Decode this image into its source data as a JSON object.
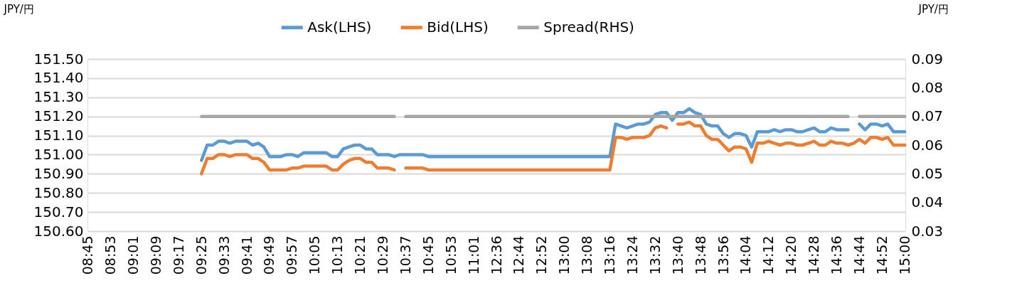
{
  "chart_data": {
    "type": "line",
    "categories": [
      "08:45",
      null,
      null,
      null,
      "08:53",
      null,
      null,
      null,
      "09:01",
      null,
      null,
      null,
      "09:09",
      null,
      null,
      null,
      "09:17",
      null,
      null,
      null,
      "09:25",
      null,
      null,
      null,
      "09:33",
      null,
      null,
      null,
      "09:41",
      null,
      null,
      null,
      "09:49",
      null,
      null,
      null,
      "09:57",
      null,
      null,
      null,
      "10:05",
      null,
      null,
      null,
      "10:13",
      null,
      null,
      null,
      "10:21",
      null,
      null,
      null,
      "10:29",
      null,
      null,
      null,
      "10:37",
      null,
      null,
      null,
      "10:45",
      null,
      null,
      null,
      "10:53",
      null,
      null,
      null,
      "11:01",
      null,
      null,
      null,
      "12:36",
      null,
      null,
      null,
      "12:44",
      null,
      null,
      null,
      "12:52",
      null,
      null,
      null,
      "13:00",
      null,
      null,
      null,
      "13:08",
      null,
      null,
      null,
      "13:16",
      null,
      null,
      null,
      "13:24",
      null,
      null,
      null,
      "13:32",
      null,
      null,
      null,
      "13:40",
      null,
      null,
      null,
      "13:48",
      null,
      null,
      null,
      "13:56",
      null,
      null,
      null,
      "14:04",
      null,
      null,
      null,
      "14:12",
      null,
      null,
      null,
      "14:20",
      null,
      null,
      null,
      "14:28",
      null,
      null,
      null,
      "14:36",
      null,
      null,
      null,
      "14:44",
      null,
      null,
      null,
      "14:52",
      null,
      null,
      null,
      "15:00"
    ],
    "series": [
      {
        "name": "Ask(LHS)",
        "color": "#5b9bd5",
        "values": [
          null,
          null,
          null,
          null,
          null,
          null,
          null,
          null,
          null,
          null,
          null,
          null,
          null,
          null,
          null,
          null,
          null,
          null,
          null,
          null,
          150.97,
          151.05,
          151.05,
          151.07,
          151.07,
          151.06,
          151.07,
          151.07,
          151.07,
          151.05,
          151.06,
          151.04,
          150.99,
          150.99,
          150.99,
          151.0,
          151.0,
          150.99,
          151.01,
          151.01,
          151.01,
          151.01,
          151.01,
          150.99,
          150.99,
          151.03,
          151.04,
          151.05,
          151.05,
          151.03,
          151.03,
          151.0,
          151.0,
          151.0,
          150.99,
          151.0,
          151.0,
          151.0,
          151.0,
          151.0,
          150.99,
          150.99,
          150.99,
          150.99,
          150.99,
          150.99,
          150.99,
          150.99,
          150.99,
          150.99,
          150.99,
          150.99,
          150.99,
          150.99,
          150.99,
          150.99,
          150.99,
          150.99,
          150.99,
          150.99,
          150.99,
          150.99,
          150.99,
          150.99,
          150.99,
          150.99,
          150.99,
          150.99,
          150.99,
          150.99,
          150.99,
          150.99,
          150.99,
          151.16,
          151.15,
          151.14,
          151.15,
          151.16,
          151.16,
          151.17,
          151.21,
          151.22,
          151.22,
          151.18,
          151.22,
          151.22,
          151.24,
          151.22,
          151.21,
          151.16,
          151.15,
          151.15,
          151.11,
          151.09,
          151.11,
          151.11,
          151.1,
          151.04,
          151.12,
          151.12,
          151.12,
          151.13,
          151.12,
          151.13,
          151.13,
          151.12,
          151.12,
          151.13,
          151.14,
          151.12,
          151.12,
          151.14,
          151.13,
          151.13,
          151.13,
          null,
          151.16,
          151.13,
          151.16,
          151.16,
          151.15,
          151.16,
          151.12,
          151.12,
          151.12
        ]
      },
      {
        "name": "Bid(LHS)",
        "color": "#ed7d31",
        "values": [
          null,
          null,
          null,
          null,
          null,
          null,
          null,
          null,
          null,
          null,
          null,
          null,
          null,
          null,
          null,
          null,
          null,
          null,
          null,
          null,
          150.9,
          150.98,
          150.98,
          151.0,
          151.0,
          150.99,
          151.0,
          151.0,
          151.0,
          150.98,
          150.98,
          150.96,
          150.92,
          150.92,
          150.92,
          150.92,
          150.93,
          150.93,
          150.94,
          150.94,
          150.94,
          150.94,
          150.94,
          150.92,
          150.92,
          150.95,
          150.97,
          150.98,
          150.98,
          150.96,
          150.96,
          150.93,
          150.93,
          150.93,
          150.92,
          null,
          150.93,
          150.93,
          150.93,
          150.93,
          150.92,
          150.92,
          150.92,
          150.92,
          150.92,
          150.92,
          150.92,
          150.92,
          150.92,
          150.92,
          150.92,
          150.92,
          150.92,
          150.92,
          150.92,
          150.92,
          150.92,
          150.92,
          150.92,
          150.92,
          150.92,
          150.92,
          150.92,
          150.92,
          150.92,
          150.92,
          150.92,
          150.92,
          150.92,
          150.92,
          150.92,
          150.92,
          150.92,
          151.09,
          151.09,
          151.08,
          151.09,
          151.09,
          151.09,
          151.1,
          151.14,
          151.15,
          151.14,
          null,
          151.16,
          151.16,
          151.17,
          151.15,
          151.15,
          151.1,
          151.08,
          151.08,
          151.05,
          151.02,
          151.04,
          151.04,
          151.03,
          150.96,
          151.06,
          151.06,
          151.07,
          151.06,
          151.05,
          151.06,
          151.06,
          151.05,
          151.05,
          151.06,
          151.07,
          151.05,
          151.05,
          151.07,
          151.06,
          151.06,
          151.05,
          151.06,
          151.08,
          151.06,
          151.09,
          151.09,
          151.08,
          151.09,
          151.05,
          151.05,
          151.05
        ]
      },
      {
        "name": "Spread(RHS)",
        "color": "#a5a5a5",
        "axis": "y2",
        "values": [
          null,
          null,
          null,
          null,
          null,
          null,
          null,
          null,
          null,
          null,
          null,
          null,
          null,
          null,
          null,
          null,
          null,
          null,
          null,
          null,
          0.07,
          0.07,
          0.07,
          0.07,
          0.07,
          0.07,
          0.07,
          0.07,
          0.07,
          0.07,
          0.07,
          0.07,
          0.07,
          0.07,
          0.07,
          0.07,
          0.07,
          0.07,
          0.07,
          0.07,
          0.07,
          0.07,
          0.07,
          0.07,
          0.07,
          0.07,
          0.07,
          0.07,
          0.07,
          0.07,
          0.07,
          0.07,
          0.07,
          0.07,
          0.07,
          null,
          0.07,
          0.07,
          0.07,
          0.07,
          0.07,
          0.07,
          0.07,
          0.07,
          0.07,
          0.07,
          0.07,
          0.07,
          0.07,
          0.07,
          0.07,
          0.07,
          0.07,
          0.07,
          0.07,
          0.07,
          0.07,
          0.07,
          0.07,
          0.07,
          0.07,
          0.07,
          0.07,
          0.07,
          0.07,
          0.07,
          0.07,
          0.07,
          0.07,
          0.07,
          0.07,
          0.07,
          0.07,
          0.07,
          0.07,
          0.07,
          0.07,
          0.07,
          0.07,
          0.07,
          0.07,
          0.07,
          0.07,
          0.07,
          0.07,
          0.07,
          0.07,
          0.07,
          0.07,
          0.07,
          0.07,
          0.07,
          0.07,
          0.07,
          0.07,
          0.07,
          0.07,
          0.07,
          0.07,
          0.07,
          0.07,
          0.07,
          0.07,
          0.07,
          0.07,
          0.07,
          0.07,
          0.07,
          0.07,
          0.07,
          0.07,
          0.07,
          0.07,
          0.07,
          0.07,
          null,
          0.07,
          0.07,
          0.07,
          0.07,
          0.07,
          0.07,
          0.07,
          0.07,
          0.07
        ]
      }
    ],
    "ylabel": "JPY/円",
    "y2label": "JPY/円",
    "ylim": [
      150.6,
      151.5
    ],
    "yticks": [
      {
        "value": 150.6,
        "label": "150.60"
      },
      {
        "value": 150.7,
        "label": "150.70"
      },
      {
        "value": 150.8,
        "label": "150.80"
      },
      {
        "value": 150.9,
        "label": "150.90"
      },
      {
        "value": 151.0,
        "label": "151.00"
      },
      {
        "value": 151.1,
        "label": "151.10"
      },
      {
        "value": 151.2,
        "label": "151.20"
      },
      {
        "value": 151.3,
        "label": "151.30"
      },
      {
        "value": 151.4,
        "label": "151.40"
      },
      {
        "value": 151.5,
        "label": "151.50"
      }
    ],
    "y2lim": [
      0.03,
      0.09
    ],
    "y2ticks": [
      0.03,
      0.04,
      0.05,
      0.06,
      0.07,
      0.08,
      0.09
    ],
    "grid": "y",
    "legend": "top",
    "line_style": "solid",
    "marker": "none"
  }
}
